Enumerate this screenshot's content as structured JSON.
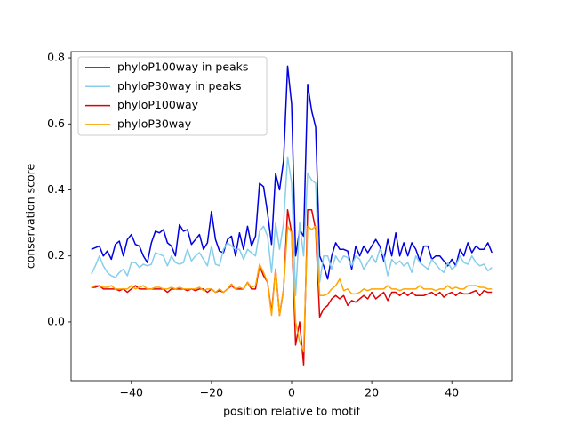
{
  "chart_data": {
    "type": "line",
    "xlabel": "position relative to motif",
    "ylabel": "conservation score",
    "xlim": [
      -55.05,
      55.05
    ],
    "ylim": [
      -0.178,
      0.819
    ],
    "xticks": [
      {
        "value": -40,
        "label": "−40"
      },
      {
        "value": -20,
        "label": "−20"
      },
      0,
      20,
      40
    ],
    "yticks": [
      {
        "value": 0,
        "label": "0.0"
      },
      0.2,
      0.4,
      0.6,
      0.8
    ],
    "legend": "upper left",
    "x": [
      -50,
      -49,
      -48,
      -47,
      -46,
      -45,
      -44,
      -43,
      -42,
      -41,
      -40,
      -39,
      -38,
      -37,
      -36,
      -35,
      -34,
      -33,
      -32,
      -31,
      -30,
      -29,
      -28,
      -27,
      -26,
      -25,
      -24,
      -23,
      -22,
      -21,
      -20,
      -19,
      -18,
      -17,
      -16,
      -15,
      -14,
      -13,
      -12,
      -11,
      -10,
      -9,
      -8,
      -7,
      -6,
      -5,
      -4,
      -3,
      -2,
      -1,
      0,
      1,
      2,
      3,
      4,
      5,
      6,
      7,
      8,
      9,
      10,
      11,
      12,
      13,
      14,
      15,
      16,
      17,
      18,
      19,
      20,
      21,
      22,
      23,
      24,
      25,
      26,
      27,
      28,
      29,
      30,
      31,
      32,
      33,
      34,
      35,
      36,
      37,
      38,
      39,
      40,
      41,
      42,
      43,
      44,
      45,
      46,
      47,
      48,
      49,
      50
    ],
    "series": [
      {
        "name": "phyloP100way in peaks",
        "color": "#0000e0",
        "values": [
          0.22,
          0.225,
          0.23,
          0.2,
          0.215,
          0.19,
          0.235,
          0.245,
          0.2,
          0.25,
          0.265,
          0.235,
          0.23,
          0.2,
          0.18,
          0.24,
          0.275,
          0.27,
          0.28,
          0.24,
          0.23,
          0.2,
          0.295,
          0.275,
          0.28,
          0.235,
          0.25,
          0.265,
          0.22,
          0.24,
          0.335,
          0.25,
          0.215,
          0.21,
          0.25,
          0.26,
          0.2,
          0.27,
          0.22,
          0.29,
          0.23,
          0.26,
          0.42,
          0.41,
          0.33,
          0.235,
          0.45,
          0.4,
          0.49,
          0.775,
          0.66,
          0.2,
          0.28,
          0.26,
          0.72,
          0.64,
          0.59,
          0.2,
          0.17,
          0.13,
          0.2,
          0.24,
          0.22,
          0.22,
          0.215,
          0.16,
          0.23,
          0.2,
          0.23,
          0.21,
          0.23,
          0.25,
          0.23,
          0.185,
          0.25,
          0.2,
          0.27,
          0.2,
          0.24,
          0.2,
          0.24,
          0.22,
          0.185,
          0.23,
          0.23,
          0.19,
          0.2,
          0.2,
          0.185,
          0.17,
          0.19,
          0.17,
          0.22,
          0.2,
          0.24,
          0.21,
          0.23,
          0.22,
          0.22,
          0.24,
          0.21
        ]
      },
      {
        "name": "phyloP30way in peaks",
        "color": "#87ceeb",
        "values": [
          0.145,
          0.17,
          0.2,
          0.17,
          0.15,
          0.14,
          0.135,
          0.15,
          0.16,
          0.14,
          0.18,
          0.18,
          0.165,
          0.175,
          0.17,
          0.175,
          0.21,
          0.205,
          0.2,
          0.17,
          0.2,
          0.18,
          0.175,
          0.18,
          0.22,
          0.185,
          0.2,
          0.21,
          0.19,
          0.17,
          0.23,
          0.175,
          0.17,
          0.22,
          0.24,
          0.23,
          0.22,
          0.22,
          0.19,
          0.22,
          0.21,
          0.2,
          0.275,
          0.29,
          0.26,
          0.15,
          0.3,
          0.22,
          0.3,
          0.5,
          0.42,
          0.08,
          0.3,
          0.2,
          0.45,
          0.43,
          0.42,
          0.12,
          0.2,
          0.2,
          0.16,
          0.2,
          0.18,
          0.2,
          0.195,
          0.17,
          0.2,
          0.19,
          0.16,
          0.18,
          0.2,
          0.18,
          0.22,
          0.2,
          0.14,
          0.19,
          0.175,
          0.185,
          0.17,
          0.18,
          0.15,
          0.2,
          0.18,
          0.17,
          0.16,
          0.19,
          0.175,
          0.16,
          0.15,
          0.18,
          0.16,
          0.17,
          0.2,
          0.18,
          0.175,
          0.2,
          0.18,
          0.17,
          0.175,
          0.155,
          0.165
        ]
      },
      {
        "name": "phyloP100way",
        "color": "#e00000",
        "values": [
          0.105,
          0.105,
          0.11,
          0.1,
          0.1,
          0.1,
          0.1,
          0.095,
          0.1,
          0.09,
          0.1,
          0.11,
          0.1,
          0.1,
          0.1,
          0.1,
          0.1,
          0.1,
          0.1,
          0.09,
          0.1,
          0.1,
          0.1,
          0.1,
          0.095,
          0.1,
          0.095,
          0.1,
          0.1,
          0.09,
          0.1,
          0.09,
          0.095,
          0.09,
          0.1,
          0.11,
          0.1,
          0.1,
          0.1,
          0.12,
          0.1,
          0.1,
          0.17,
          0.14,
          0.12,
          0.03,
          0.16,
          0.02,
          0.1,
          0.34,
          0.27,
          -0.07,
          0.0,
          -0.13,
          0.34,
          0.34,
          0.28,
          0.015,
          0.04,
          0.05,
          0.07,
          0.08,
          0.07,
          0.08,
          0.05,
          0.065,
          0.06,
          0.07,
          0.08,
          0.07,
          0.09,
          0.07,
          0.08,
          0.09,
          0.065,
          0.09,
          0.09,
          0.08,
          0.09,
          0.08,
          0.09,
          0.08,
          0.08,
          0.08,
          0.085,
          0.09,
          0.08,
          0.09,
          0.075,
          0.085,
          0.09,
          0.08,
          0.09,
          0.085,
          0.085,
          0.09,
          0.095,
          0.08,
          0.095,
          0.09,
          0.09
        ]
      },
      {
        "name": "phyloP30way",
        "color": "#ffa500",
        "values": [
          0.105,
          0.11,
          0.11,
          0.105,
          0.105,
          0.11,
          0.1,
          0.1,
          0.1,
          0.1,
          0.11,
          0.1,
          0.105,
          0.11,
          0.1,
          0.1,
          0.105,
          0.105,
          0.1,
          0.1,
          0.105,
          0.1,
          0.105,
          0.1,
          0.1,
          0.1,
          0.1,
          0.105,
          0.095,
          0.1,
          0.1,
          0.09,
          0.1,
          0.09,
          0.1,
          0.115,
          0.1,
          0.105,
          0.1,
          0.12,
          0.105,
          0.11,
          0.175,
          0.15,
          0.12,
          0.02,
          0.16,
          0.02,
          0.1,
          0.29,
          0.27,
          0.0,
          -0.06,
          -0.09,
          0.29,
          0.28,
          0.29,
          0.08,
          0.08,
          0.085,
          0.1,
          0.11,
          0.13,
          0.095,
          0.1,
          0.085,
          0.085,
          0.09,
          0.1,
          0.095,
          0.1,
          0.1,
          0.1,
          0.1,
          0.11,
          0.1,
          0.1,
          0.095,
          0.1,
          0.1,
          0.1,
          0.1,
          0.11,
          0.1,
          0.1,
          0.1,
          0.095,
          0.1,
          0.1,
          0.11,
          0.1,
          0.105,
          0.1,
          0.1,
          0.11,
          0.11,
          0.11,
          0.105,
          0.105,
          0.1,
          0.1
        ]
      }
    ]
  }
}
